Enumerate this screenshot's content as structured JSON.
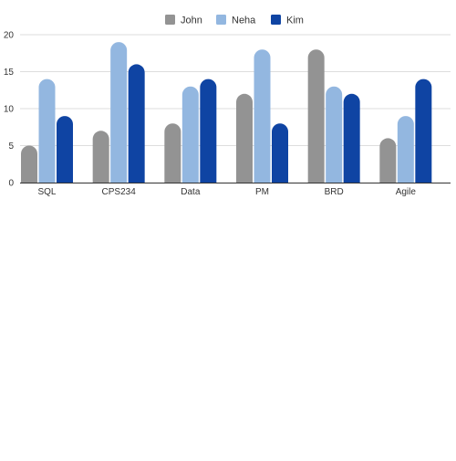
{
  "chart_data": {
    "type": "bar",
    "title": "",
    "xlabel": "",
    "ylabel": "",
    "categories": [
      "SQL",
      "CPS234",
      "Data",
      "PM",
      "BRD",
      "Agile"
    ],
    "series": [
      {
        "name": "John",
        "color": "#939393",
        "values": [
          5,
          7,
          8,
          12,
          18,
          6
        ]
      },
      {
        "name": "Neha",
        "color": "#93b7e0",
        "values": [
          14,
          19,
          13,
          18,
          13,
          9
        ]
      },
      {
        "name": "Kim",
        "color": "#0f44a3",
        "values": [
          9,
          16,
          14,
          8,
          12,
          14
        ]
      }
    ],
    "ylim": [
      0,
      20
    ],
    "yticks": [
      0,
      5,
      10,
      15,
      20
    ],
    "grid": true,
    "legend_position": "top-center"
  }
}
